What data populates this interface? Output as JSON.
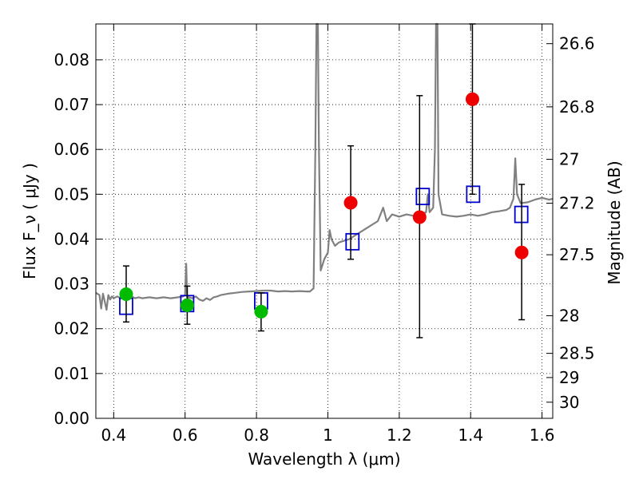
{
  "chart_data": {
    "type": "scatter",
    "xlabel": "Wavelength  λ (μm)",
    "ylabel": "Flux  F_ν  ( μJy )",
    "ylabel_right": "Magnitude (AB)",
    "xlim": [
      0.35,
      1.63
    ],
    "ylim": [
      0.0,
      0.088
    ],
    "grid": true,
    "x_ticks": [
      0.4,
      0.6,
      0.8,
      1.0,
      1.2,
      1.4,
      1.6
    ],
    "x_tick_labels": [
      "0.4",
      "0.6",
      "0.8",
      "1",
      "1.2",
      "1.4",
      "1.6"
    ],
    "y_ticks": [
      0.0,
      0.01,
      0.02,
      0.03,
      0.04,
      0.05,
      0.06,
      0.07,
      0.08
    ],
    "y_tick_labels": [
      "0.00",
      "0.01",
      "0.02",
      "0.03",
      "0.04",
      "0.05",
      "0.06",
      "0.07",
      "0.08"
    ],
    "right_ticks": [
      {
        "label": "26.6",
        "flux": 0.0836
      },
      {
        "label": "26.8",
        "flux": 0.0695
      },
      {
        "label": "27",
        "flux": 0.0578
      },
      {
        "label": "27.2",
        "flux": 0.048
      },
      {
        "label": "27.5",
        "flux": 0.0365
      },
      {
        "label": "28",
        "flux": 0.0229
      },
      {
        "label": "28.5",
        "flux": 0.0145
      },
      {
        "label": "29",
        "flux": 0.0091
      },
      {
        "label": "30",
        "flux": 0.0036
      }
    ],
    "series": [
      {
        "type": "line",
        "color": "#808080",
        "points": [
          [
            0.35,
            0.028
          ],
          [
            0.36,
            0.0275
          ],
          [
            0.365,
            0.0245
          ],
          [
            0.37,
            0.0278
          ],
          [
            0.375,
            0.026
          ],
          [
            0.38,
            0.0242
          ],
          [
            0.385,
            0.0275
          ],
          [
            0.39,
            0.0265
          ],
          [
            0.395,
            0.0272
          ],
          [
            0.4,
            0.0268
          ],
          [
            0.41,
            0.0272
          ],
          [
            0.42,
            0.0268
          ],
          [
            0.43,
            0.0272
          ],
          [
            0.44,
            0.027
          ],
          [
            0.45,
            0.0272
          ],
          [
            0.46,
            0.0268
          ],
          [
            0.47,
            0.027
          ],
          [
            0.48,
            0.0268
          ],
          [
            0.5,
            0.027
          ],
          [
            0.52,
            0.0268
          ],
          [
            0.54,
            0.027
          ],
          [
            0.56,
            0.0268
          ],
          [
            0.58,
            0.027
          ],
          [
            0.595,
            0.0272
          ],
          [
            0.6,
            0.0275
          ],
          [
            0.603,
            0.0345
          ],
          [
            0.606,
            0.0265
          ],
          [
            0.61,
            0.027
          ],
          [
            0.62,
            0.0268
          ],
          [
            0.63,
            0.0272
          ],
          [
            0.64,
            0.0265
          ],
          [
            0.65,
            0.0262
          ],
          [
            0.66,
            0.0268
          ],
          [
            0.67,
            0.0264
          ],
          [
            0.68,
            0.027
          ],
          [
            0.69,
            0.0272
          ],
          [
            0.7,
            0.0275
          ],
          [
            0.72,
            0.0278
          ],
          [
            0.74,
            0.028
          ],
          [
            0.76,
            0.0282
          ],
          [
            0.78,
            0.0283
          ],
          [
            0.8,
            0.0284
          ],
          [
            0.82,
            0.0285
          ],
          [
            0.84,
            0.0285
          ],
          [
            0.86,
            0.0283
          ],
          [
            0.88,
            0.0284
          ],
          [
            0.9,
            0.0283
          ],
          [
            0.92,
            0.0284
          ],
          [
            0.94,
            0.0283
          ],
          [
            0.95,
            0.0283
          ],
          [
            0.96,
            0.029
          ],
          [
            0.965,
            0.06
          ],
          [
            0.968,
            0.088
          ],
          [
            0.972,
            0.088
          ],
          [
            0.975,
            0.06
          ],
          [
            0.98,
            0.033
          ],
          [
            0.99,
            0.0355
          ],
          [
            1.0,
            0.037
          ],
          [
            1.005,
            0.042
          ],
          [
            1.01,
            0.04
          ],
          [
            1.02,
            0.0385
          ],
          [
            1.03,
            0.0392
          ],
          [
            1.04,
            0.0395
          ],
          [
            1.06,
            0.04
          ],
          [
            1.08,
            0.041
          ],
          [
            1.1,
            0.042
          ],
          [
            1.12,
            0.043
          ],
          [
            1.14,
            0.044
          ],
          [
            1.155,
            0.047
          ],
          [
            1.165,
            0.044
          ],
          [
            1.18,
            0.0455
          ],
          [
            1.2,
            0.045
          ],
          [
            1.22,
            0.0455
          ],
          [
            1.24,
            0.0452
          ],
          [
            1.26,
            0.0455
          ],
          [
            1.275,
            0.046
          ],
          [
            1.28,
            0.05
          ],
          [
            1.285,
            0.046
          ],
          [
            1.295,
            0.047
          ],
          [
            1.3,
            0.06
          ],
          [
            1.303,
            0.088
          ],
          [
            1.307,
            0.088
          ],
          [
            1.31,
            0.05
          ],
          [
            1.32,
            0.0455
          ],
          [
            1.34,
            0.0452
          ],
          [
            1.36,
            0.045
          ],
          [
            1.38,
            0.0452
          ],
          [
            1.4,
            0.0455
          ],
          [
            1.42,
            0.0452
          ],
          [
            1.44,
            0.0455
          ],
          [
            1.46,
            0.046
          ],
          [
            1.48,
            0.0462
          ],
          [
            1.5,
            0.0465
          ],
          [
            1.51,
            0.047
          ],
          [
            1.52,
            0.049
          ],
          [
            1.525,
            0.058
          ],
          [
            1.53,
            0.05
          ],
          [
            1.54,
            0.048
          ],
          [
            1.56,
            0.0482
          ],
          [
            1.58,
            0.0488
          ],
          [
            1.6,
            0.0492
          ],
          [
            1.62,
            0.0488
          ],
          [
            1.63,
            0.049
          ]
        ]
      },
      {
        "type": "scatter",
        "marker": "open-square",
        "color": "#0000cc",
        "points": [
          [
            0.435,
            0.025
          ],
          [
            0.606,
            0.0256
          ],
          [
            0.813,
            0.0262
          ],
          [
            1.069,
            0.0394
          ],
          [
            1.266,
            0.0495
          ],
          [
            1.407,
            0.05
          ],
          [
            1.542,
            0.0455
          ]
        ]
      },
      {
        "type": "scatter",
        "marker": "filled-circle",
        "color": "#00bb00",
        "points": [
          {
            "x": 0.435,
            "y": 0.0277,
            "err_low": 0.0215,
            "err_high": 0.034
          },
          {
            "x": 0.606,
            "y": 0.0252,
            "err_low": 0.021,
            "err_high": 0.0295
          },
          {
            "x": 0.813,
            "y": 0.0238,
            "err_low": 0.0195,
            "err_high": 0.028
          }
        ]
      },
      {
        "type": "scatter",
        "marker": "filled-circle",
        "color": "#ee0000",
        "points": [
          {
            "x": 1.064,
            "y": 0.0481,
            "err_low": 0.0355,
            "err_high": 0.0608
          },
          {
            "x": 1.257,
            "y": 0.0449,
            "err_low": 0.018,
            "err_high": 0.072
          },
          {
            "x": 1.405,
            "y": 0.0712,
            "err_low": 0.05,
            "err_high": 0.088
          },
          {
            "x": 1.543,
            "y": 0.037,
            "err_low": 0.022,
            "err_high": 0.0522
          }
        ]
      }
    ]
  }
}
